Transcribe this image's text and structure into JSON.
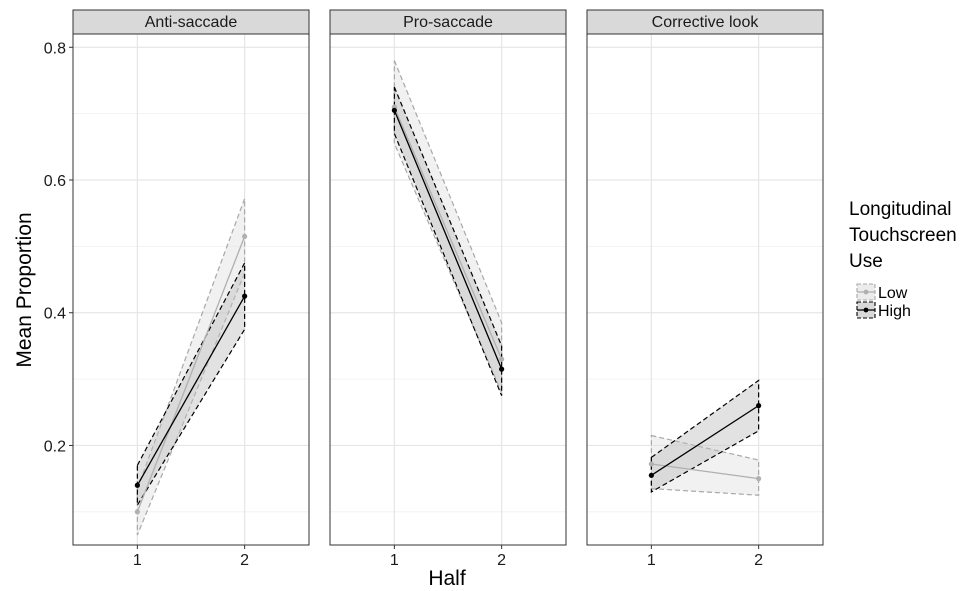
{
  "chart_data": {
    "type": "line",
    "xlabel": "Half",
    "ylabel": "Mean Proportion",
    "x": [
      1,
      2
    ],
    "x_ticks": [
      "1",
      "2"
    ],
    "y_ticks": [
      "0.2",
      "0.4",
      "0.6",
      "0.8"
    ],
    "xlim": [
      0.4,
      2.6
    ],
    "ylim": [
      0.05,
      0.82
    ],
    "grid": true,
    "legend": {
      "title_lines": [
        "Longitudinal",
        "Touchscreen",
        "Use"
      ],
      "position": "right",
      "entries": [
        {
          "name": "Low",
          "line_color": "#b0b0b0",
          "ribbon_fill": "#e0e0e0",
          "ribbon_stroke": "#a8a8a8"
        },
        {
          "name": "High",
          "line_color": "#000000",
          "ribbon_fill": "#bfbfbf",
          "ribbon_stroke": "#000000"
        }
      ]
    },
    "panels": [
      {
        "title": "Anti-saccade",
        "series": [
          {
            "name": "Low",
            "values": [
              0.1,
              0.515
            ],
            "lower": [
              0.065,
              0.46
            ],
            "upper": [
              0.135,
              0.572
            ]
          },
          {
            "name": "High",
            "values": [
              0.14,
              0.425
            ],
            "lower": [
              0.11,
              0.375
            ],
            "upper": [
              0.17,
              0.475
            ]
          }
        ]
      },
      {
        "title": "Pro-saccade",
        "series": [
          {
            "name": "Low",
            "values": [
              0.71,
              0.33
            ],
            "lower": [
              0.655,
              0.28
            ],
            "upper": [
              0.78,
              0.385
            ]
          },
          {
            "name": "High",
            "values": [
              0.705,
              0.315
            ],
            "lower": [
              0.67,
              0.275
            ],
            "upper": [
              0.74,
              0.35
            ]
          }
        ]
      },
      {
        "title": "Corrective look",
        "series": [
          {
            "name": "Low",
            "values": [
              0.172,
              0.15
            ],
            "lower": [
              0.135,
              0.125
            ],
            "upper": [
              0.215,
              0.178
            ]
          },
          {
            "name": "High",
            "values": [
              0.155,
              0.26
            ],
            "lower": [
              0.13,
              0.222
            ],
            "upper": [
              0.182,
              0.298
            ]
          }
        ]
      }
    ]
  }
}
